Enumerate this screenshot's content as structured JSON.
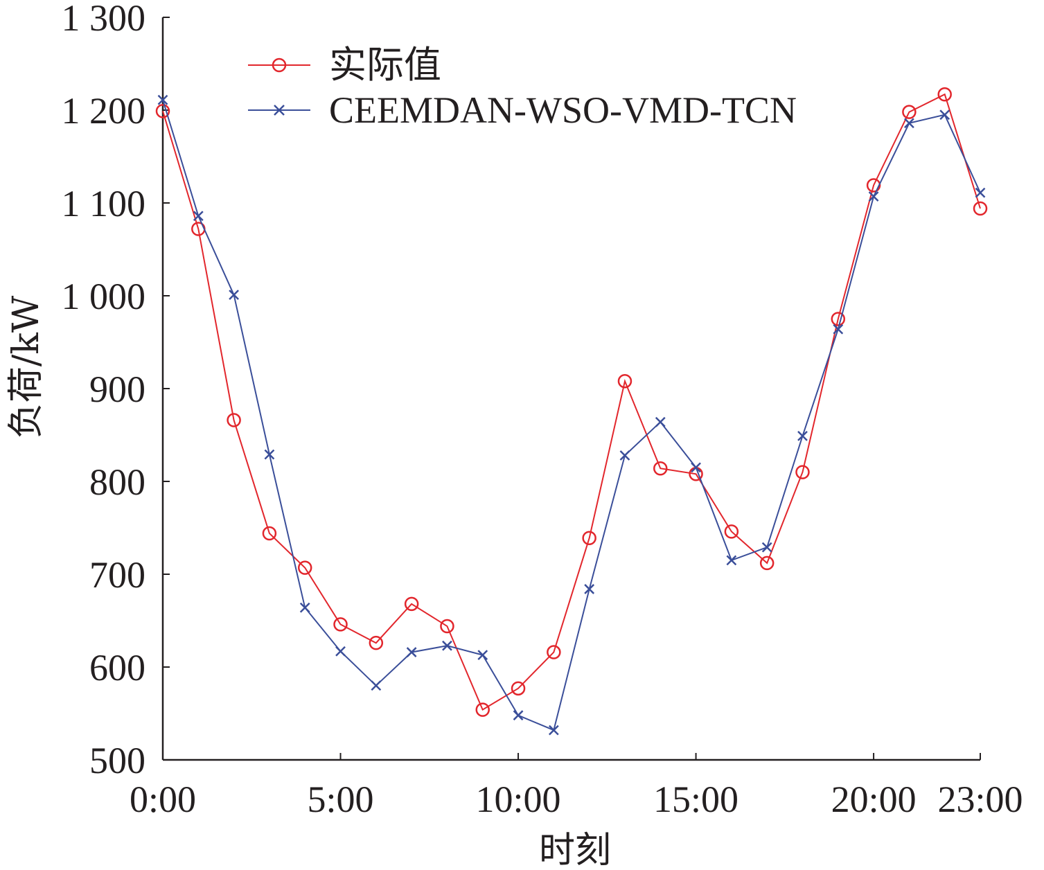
{
  "chart_data": {
    "type": "line",
    "xlabel": "时刻",
    "ylabel": "负荷/kW",
    "x": [
      0,
      1,
      2,
      3,
      4,
      5,
      6,
      7,
      8,
      9,
      10,
      11,
      12,
      13,
      14,
      15,
      16,
      17,
      18,
      19,
      20,
      21,
      22,
      23
    ],
    "xlim": [
      0,
      23
    ],
    "ylim": [
      500,
      1300
    ],
    "x_ticks": [
      0,
      5,
      10,
      15,
      20,
      23
    ],
    "x_tick_labels": [
      "0:00",
      "5:00",
      "10:00",
      "15:00",
      "20:00",
      "23:00"
    ],
    "y_ticks": [
      500,
      600,
      700,
      800,
      900,
      1000,
      1100,
      1200,
      1300
    ],
    "y_tick_labels": [
      "500",
      "600",
      "700",
      "800",
      "900",
      "1 000",
      "1 100",
      "1 200",
      "1 300"
    ],
    "grid": false,
    "legend_position": "top-left",
    "series": [
      {
        "name": "实际值",
        "color": "#e2262c",
        "marker": "circle",
        "values": [
          1199,
          1072,
          866,
          744,
          707,
          646,
          626,
          668,
          644,
          554,
          577,
          616,
          739,
          908,
          814,
          808,
          746,
          712,
          810,
          975,
          1119,
          1198,
          1217,
          1094
        ]
      },
      {
        "name": "CEEMDAN-WSO-VMD-TCN",
        "color": "#3a4e99",
        "marker": "x",
        "values": [
          1211,
          1086,
          1001,
          829,
          664,
          617,
          580,
          616,
          623,
          613,
          548,
          532,
          684,
          828,
          864,
          815,
          715,
          729,
          849,
          964,
          1107,
          1186,
          1195,
          1111
        ]
      }
    ]
  }
}
